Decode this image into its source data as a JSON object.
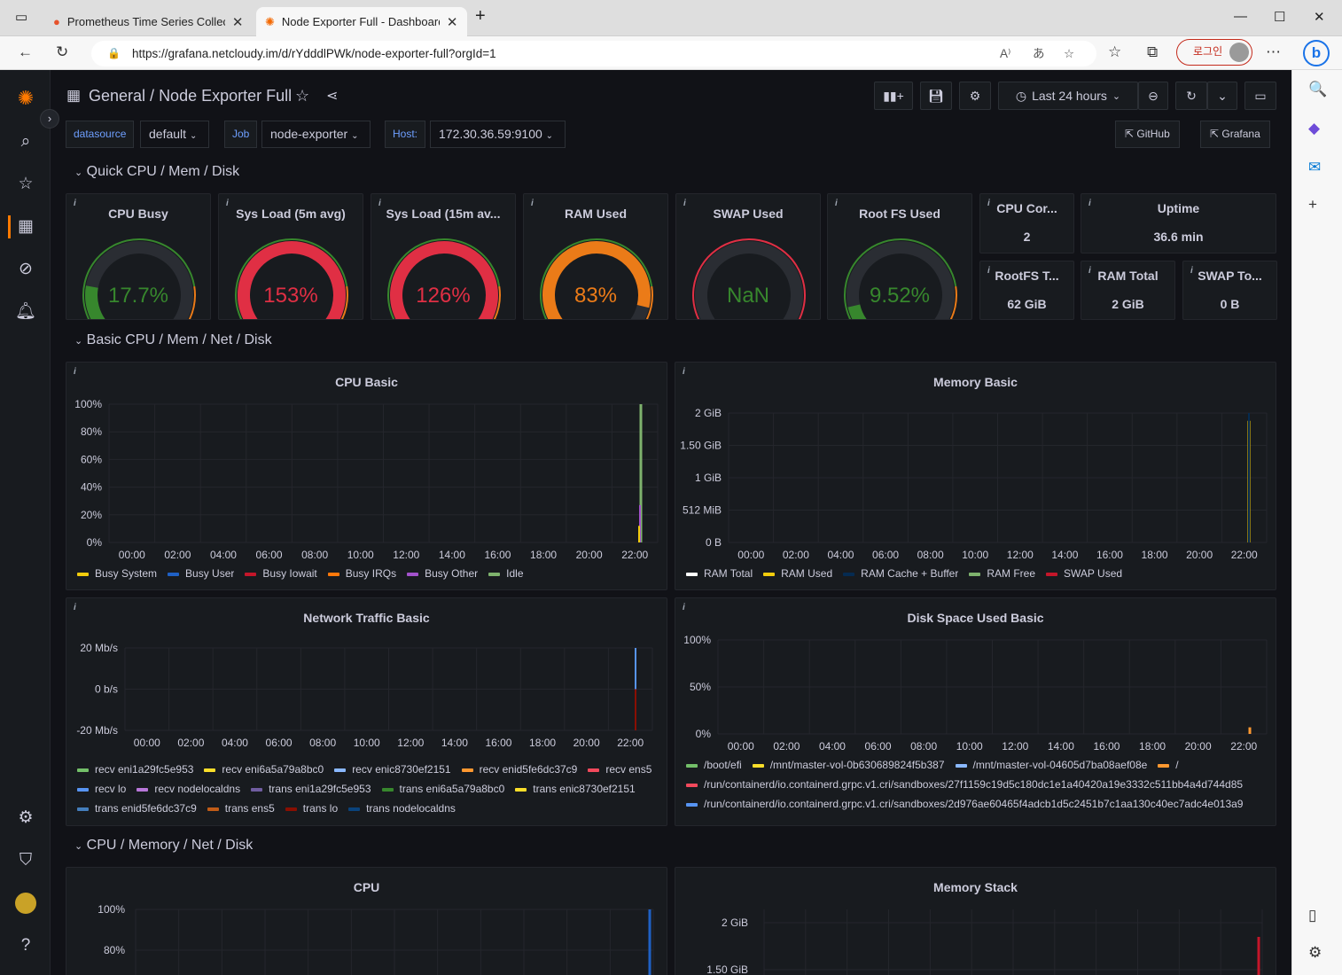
{
  "browser": {
    "tabs": [
      {
        "title": "Prometheus Time Series Collectio"
      },
      {
        "title": "Node Exporter Full - Dashboards"
      }
    ],
    "url": "https://grafana.netcloudy.im/d/rYdddlPWk/node-exporter-full?orgId=1",
    "login_label": "로그인"
  },
  "header": {
    "folder": "General",
    "sep": " / ",
    "title": "Node Exporter Full",
    "time_range": "Last 24 hours"
  },
  "variables": [
    {
      "label": "datasource",
      "value": "default"
    },
    {
      "label": "Job",
      "value": "node-exporter"
    },
    {
      "label": "Host:",
      "value": "172.30.36.59:9100"
    }
  ],
  "links": {
    "github": "GitHub",
    "grafana": "Grafana"
  },
  "rows": {
    "quick": "Quick CPU / Mem / Disk",
    "basic": "Basic CPU / Mem / Net / Disk",
    "cpu_mem": "CPU / Memory / Net / Disk"
  },
  "gauges": [
    {
      "title": "CPU Busy",
      "value": "17.7%",
      "fraction": 0.177,
      "color": "#37872d"
    },
    {
      "title": "Sys Load (5m avg)",
      "value": "153%",
      "fraction": 1.0,
      "color": "#e02f44"
    },
    {
      "title": "Sys Load (15m av...",
      "value": "126%",
      "fraction": 1.0,
      "color": "#e02f44"
    },
    {
      "title": "RAM Used",
      "value": "83%",
      "fraction": 0.83,
      "color": "#eb7b18"
    },
    {
      "title": "SWAP Used",
      "value": "NaN",
      "fraction": 0,
      "color": "#37872d"
    },
    {
      "title": "Root FS Used",
      "value": "9.52%",
      "fraction": 0.0952,
      "color": "#37872d"
    }
  ],
  "stats": [
    {
      "title": "CPU Cor...",
      "value": "2"
    },
    {
      "title": "Uptime",
      "value": "36.6 min"
    },
    {
      "title": "RootFS T...",
      "value": "62 GiB"
    },
    {
      "title": "RAM Total",
      "value": "2 GiB"
    },
    {
      "title": "SWAP To...",
      "value": "0 B"
    }
  ],
  "x_ticks": [
    "00:00",
    "02:00",
    "04:00",
    "06:00",
    "08:00",
    "10:00",
    "12:00",
    "14:00",
    "16:00",
    "18:00",
    "20:00",
    "22:00"
  ],
  "panels": {
    "cpu_basic": {
      "title": "CPU Basic",
      "y_ticks": [
        "100%",
        "80%",
        "60%",
        "40%",
        "20%",
        "0%"
      ],
      "legend": [
        {
          "name": "Busy System",
          "color": "#f2cc0c"
        },
        {
          "name": "Busy User",
          "color": "#1f60c4"
        },
        {
          "name": "Busy Iowait",
          "color": "#c4162a"
        },
        {
          "name": "Busy IRQs",
          "color": "#ff780a"
        },
        {
          "name": "Busy Other",
          "color": "#a352cc"
        },
        {
          "name": "Idle",
          "color": "#7eb26d"
        }
      ]
    },
    "memory_basic": {
      "title": "Memory Basic",
      "y_ticks": [
        "2 GiB",
        "1.50 GiB",
        "1 GiB",
        "512 MiB",
        "0 B"
      ],
      "legend": [
        {
          "name": "RAM Total",
          "color": "#ffffff"
        },
        {
          "name": "RAM Used",
          "color": "#f2cc0c"
        },
        {
          "name": "RAM Cache + Buffer",
          "color": "#052b51"
        },
        {
          "name": "RAM Free",
          "color": "#7eb26d"
        },
        {
          "name": "SWAP Used",
          "color": "#c4162a"
        }
      ]
    },
    "network_basic": {
      "title": "Network Traffic Basic",
      "y_ticks": [
        "20 Mb/s",
        "0 b/s",
        "-20 Mb/s"
      ],
      "legend": [
        {
          "name": "recv eni1a29fc5e953",
          "color": "#73bf69"
        },
        {
          "name": "recv eni6a5a79a8bc0",
          "color": "#fade2a"
        },
        {
          "name": "recv enic8730ef2151",
          "color": "#8ab8ff"
        },
        {
          "name": "recv enid5fe6dc37c9",
          "color": "#ff9830"
        },
        {
          "name": "recv ens5",
          "color": "#f2495c"
        },
        {
          "name": "recv lo",
          "color": "#5794f2"
        },
        {
          "name": "recv nodelocaldns",
          "color": "#b877d9"
        },
        {
          "name": "trans eni1a29fc5e953",
          "color": "#705da0"
        },
        {
          "name": "trans eni6a5a79a8bc0",
          "color": "#37872d"
        },
        {
          "name": "trans enic8730ef2151",
          "color": "#fade2a"
        },
        {
          "name": "trans enid5fe6dc37c9",
          "color": "#447ebc"
        },
        {
          "name": "trans ens5",
          "color": "#c15c17"
        },
        {
          "name": "trans lo",
          "color": "#890f02"
        },
        {
          "name": "trans nodelocaldns",
          "color": "#0a437c"
        }
      ]
    },
    "disk_basic": {
      "title": "Disk Space Used Basic",
      "y_ticks": [
        "100%",
        "50%",
        "0%"
      ],
      "legend": [
        {
          "name": "/boot/efi",
          "color": "#73bf69"
        },
        {
          "name": "/mnt/master-vol-0b630689824f5b387",
          "color": "#fade2a"
        },
        {
          "name": "/mnt/master-vol-04605d7ba08aef08e",
          "color": "#8ab8ff"
        },
        {
          "name": "/",
          "color": "#ff9830"
        },
        {
          "name": "/run/containerd/io.containerd.grpc.v1.cri/sandboxes/27f1159c19d5c180dc1e1a40420a19e3332c511bb4a4d744d85",
          "color": "#f2495c"
        },
        {
          "name": "/run/containerd/io.containerd.grpc.v1.cri/sandboxes/2d976ae60465f4adcb1d5c2451b7c1aa130c40ec7adc4e013a9",
          "color": "#5794f2"
        }
      ]
    },
    "cpu": {
      "title": "CPU",
      "y_ticks": [
        "100%",
        "80%"
      ]
    },
    "memory_stack": {
      "title": "Memory Stack",
      "y_ticks": [
        "2 GiB",
        "1.50 GiB"
      ]
    }
  },
  "colors": {
    "accent": "#ff7a00",
    "bg": "#111217",
    "panel": "#181b1f",
    "link": "#6e9fff"
  }
}
